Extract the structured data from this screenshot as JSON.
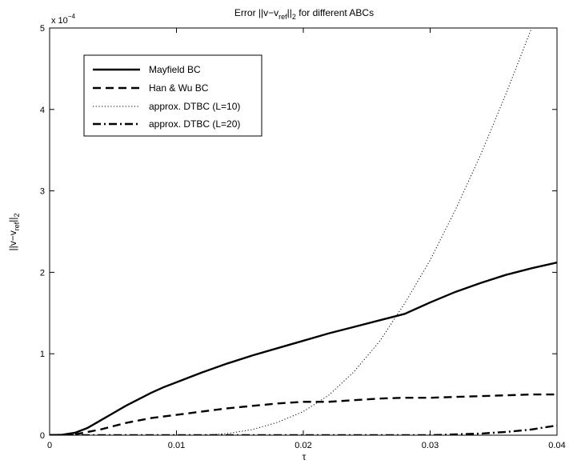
{
  "chart_data": {
    "type": "line",
    "title_prefix": "Error ||v−v",
    "title_sub": "ref",
    "title_mid": "||",
    "title_sub2": "2",
    "title_suffix": " for different ABCs",
    "xlabel": "τ",
    "ylabel_prefix": "||v−v",
    "ylabel_sub": "ref",
    "ylabel_mid": "||",
    "ylabel_sub2": "2",
    "y_exponent_base": "x 10",
    "y_exponent_power": "−4",
    "xlim": [
      0,
      0.04
    ],
    "ylim": [
      0,
      5
    ],
    "x_ticks": [
      0,
      0.01,
      0.02,
      0.03,
      0.04
    ],
    "x_tick_labels": [
      "0",
      "0.01",
      "0.02",
      "0.03",
      "0.04"
    ],
    "y_ticks": [
      0,
      1,
      2,
      3,
      4,
      5
    ],
    "y_tick_labels": [
      "0",
      "1",
      "2",
      "3",
      "4",
      "5"
    ],
    "legend_position": "top-left",
    "series": [
      {
        "name": "Mayfield BC",
        "style": "solid",
        "width": 2.4,
        "x": [
          0,
          0.001,
          0.002,
          0.003,
          0.004,
          0.005,
          0.006,
          0.007,
          0.008,
          0.009,
          0.01,
          0.012,
          0.014,
          0.016,
          0.018,
          0.02,
          0.022,
          0.024,
          0.026,
          0.028,
          0.03,
          0.032,
          0.034,
          0.036,
          0.038,
          0.04
        ],
        "values": [
          0,
          0.005,
          0.03,
          0.09,
          0.18,
          0.27,
          0.36,
          0.44,
          0.52,
          0.59,
          0.65,
          0.77,
          0.88,
          0.98,
          1.07,
          1.16,
          1.25,
          1.33,
          1.41,
          1.49,
          1.63,
          1.76,
          1.87,
          1.97,
          2.05,
          2.12
        ]
      },
      {
        "name": "Han & Wu BC",
        "style": "dashed",
        "width": 2.4,
        "x": [
          0,
          0.002,
          0.004,
          0.006,
          0.008,
          0.01,
          0.012,
          0.014,
          0.016,
          0.018,
          0.02,
          0.022,
          0.024,
          0.026,
          0.028,
          0.03,
          0.032,
          0.034,
          0.036,
          0.038,
          0.04
        ],
        "values": [
          0,
          0.01,
          0.07,
          0.15,
          0.21,
          0.25,
          0.29,
          0.33,
          0.36,
          0.39,
          0.41,
          0.41,
          0.43,
          0.45,
          0.46,
          0.46,
          0.47,
          0.48,
          0.49,
          0.5,
          0.5
        ]
      },
      {
        "name": "approx. DTBC (L=10)",
        "style": "dotted",
        "width": 1,
        "x": [
          0,
          0.012,
          0.014,
          0.016,
          0.018,
          0.02,
          0.022,
          0.024,
          0.026,
          0.028,
          0.03,
          0.032,
          0.034,
          0.036,
          0.038
        ],
        "values": [
          0,
          0,
          0.02,
          0.07,
          0.16,
          0.29,
          0.49,
          0.78,
          1.15,
          1.62,
          2.15,
          2.77,
          3.45,
          4.2,
          5.0
        ]
      },
      {
        "name": "approx. DTBC (L=20)",
        "style": "dashdot",
        "width": 2.4,
        "x": [
          0,
          0.03,
          0.032,
          0.034,
          0.036,
          0.038,
          0.04
        ],
        "values": [
          0,
          0,
          0.01,
          0.02,
          0.04,
          0.07,
          0.12
        ]
      }
    ]
  }
}
